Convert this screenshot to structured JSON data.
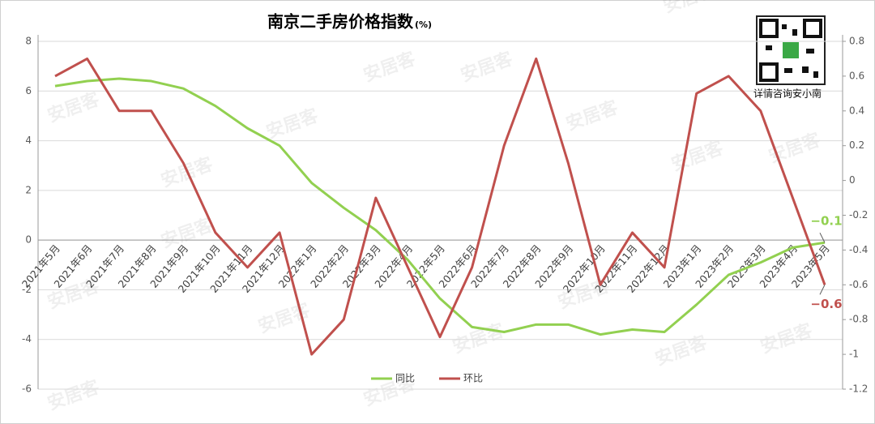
{
  "chart_data": {
    "type": "line",
    "title": "南京二手房价格指数",
    "title_unit": "(%)",
    "caption": "详情咨询安小南",
    "watermark": "安居客",
    "categories": [
      "2021年5月",
      "2021年6月",
      "2021年7月",
      "2021年8月",
      "2021年9月",
      "2021年10月",
      "2021年11月",
      "2021年12月",
      "2022年1月",
      "2022年2月",
      "2022年3月",
      "2022年4月",
      "2022年5月",
      "2022年6月",
      "2022年7月",
      "2022年8月",
      "2022年9月",
      "2022年10月",
      "2022年11月",
      "2022年12月",
      "2023年1月",
      "2023年2月",
      "2023年3月",
      "2023年4月",
      "2023年5月"
    ],
    "series": [
      {
        "name": "同比",
        "color": "#92d050",
        "values": [
          6.2,
          6.4,
          6.5,
          6.4,
          6.1,
          5.4,
          4.5,
          3.8,
          2.3,
          1.3,
          0.4,
          -0.8,
          -2.35,
          -3.5,
          -3.7,
          -3.4,
          -3.4,
          -3.8,
          -3.6,
          -3.7,
          -2.6,
          -1.4,
          -0.9,
          -0.3,
          -0.1
        ],
        "value_labels": [
          null,
          null,
          null,
          null,
          null,
          null,
          null,
          null,
          null,
          null,
          null,
          null,
          null,
          null,
          null,
          null,
          null,
          null,
          null,
          null,
          null,
          null,
          null,
          null,
          "−0.1"
        ]
      },
      {
        "name": "环比",
        "color": "#c0504d",
        "axis": "y2",
        "values": [
          0.6,
          0.7,
          0.4,
          0.4,
          0.1,
          -0.3,
          -0.5,
          -0.3,
          -1.0,
          -0.8,
          -0.1,
          -0.5,
          -0.9,
          -0.5,
          0.2,
          0.7,
          0.1,
          -0.6,
          -0.3,
          -0.5,
          0.5,
          0.6,
          0.4,
          -0.1,
          -0.6
        ],
        "value_labels": [
          null,
          null,
          null,
          null,
          null,
          null,
          null,
          null,
          null,
          null,
          null,
          null,
          null,
          null,
          null,
          null,
          null,
          null,
          null,
          null,
          null,
          null,
          null,
          null,
          "−0.6"
        ]
      }
    ],
    "ylim": [
      -6,
      8
    ],
    "yticks": [
      -6,
      -4,
      -2,
      0,
      2,
      4,
      6,
      8
    ],
    "y2lim": [
      -1.2,
      0.8
    ],
    "y2ticks": [
      -1.2,
      -1,
      -0.8,
      -0.6,
      -0.4,
      -0.2,
      0,
      0.2,
      0.4,
      0.6,
      0.8
    ],
    "grid": true,
    "legend": "bottom"
  }
}
